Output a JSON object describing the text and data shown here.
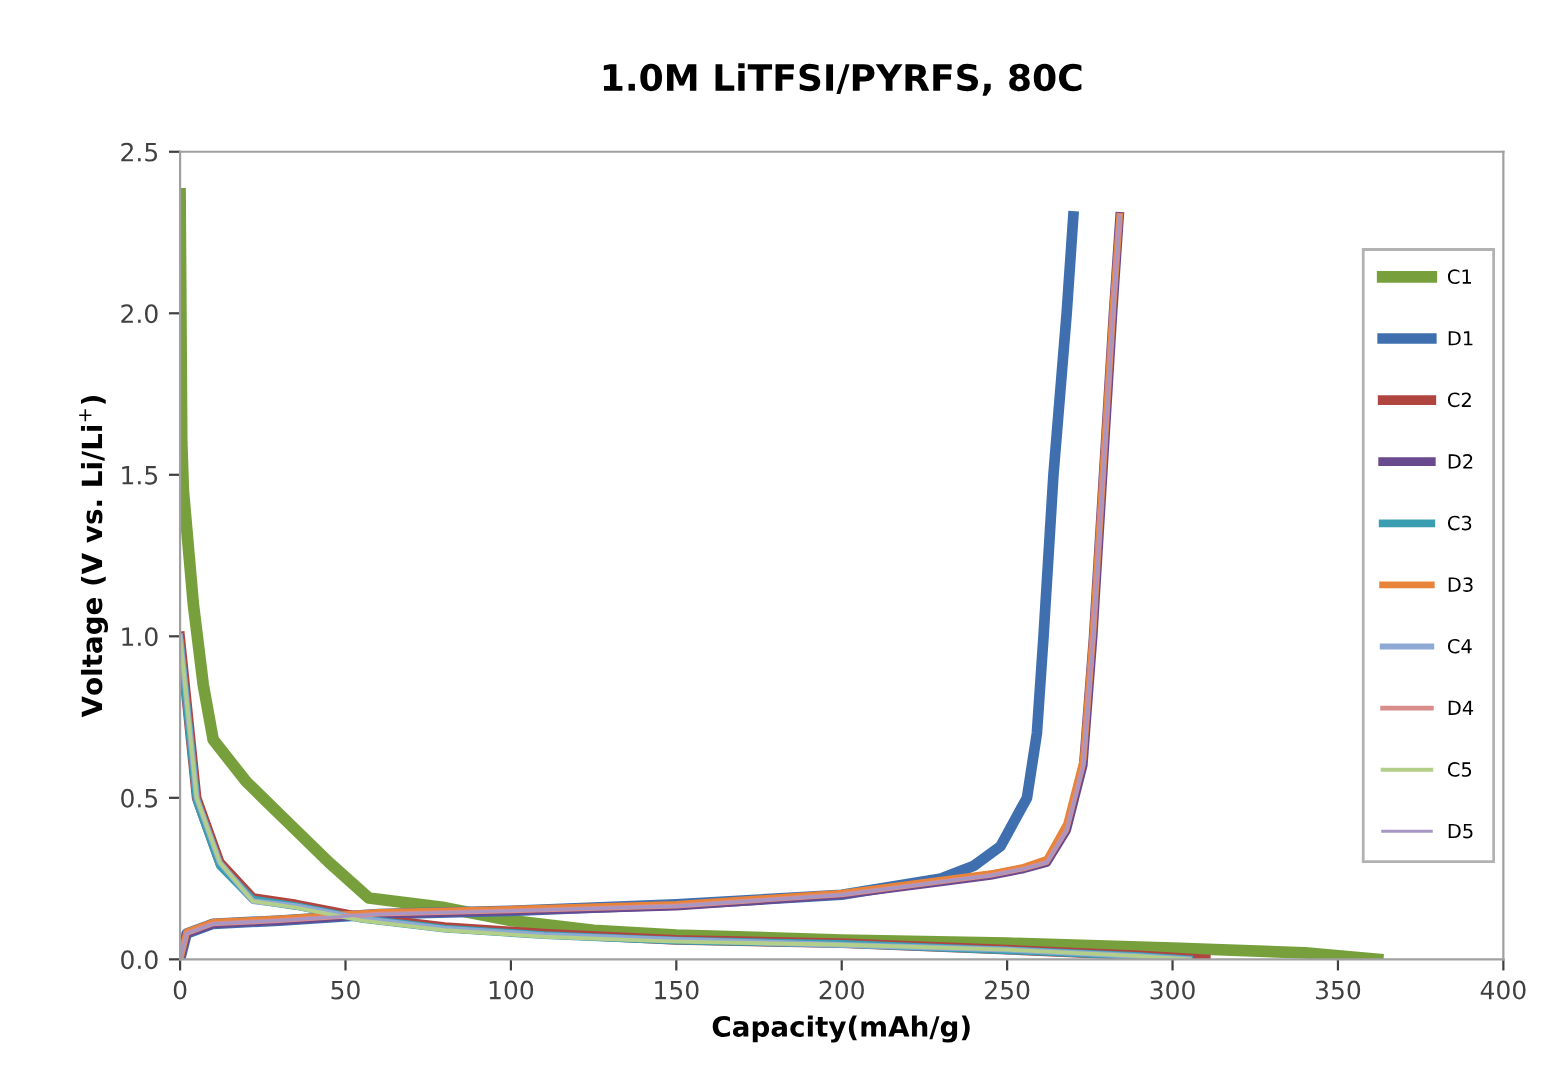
{
  "chart_data": {
    "type": "line",
    "title": "1.0M LiTFSI/PYRFS, 80C",
    "xlabel": "Capacity(mAh/g)",
    "ylabel": "Voltage (V vs. Li/Li$^{+}$)",
    "xlim": [
      0,
      400
    ],
    "ylim": [
      0,
      2.5
    ],
    "xticks": [
      0,
      50,
      100,
      150,
      200,
      250,
      300,
      350,
      400
    ],
    "yticks": [
      {
        "value": 0,
        "label": "0.0"
      },
      {
        "value": 0.5,
        "label": "0.5"
      },
      {
        "value": 1,
        "label": "1.0"
      },
      {
        "value": 1.5,
        "label": "1.5"
      },
      {
        "value": 2,
        "label": "2.0"
      },
      {
        "value": 2.5,
        "label": "2.5"
      }
    ],
    "grid": false,
    "legend": "right",
    "marker": "none",
    "line_style": "solid",
    "series": [
      {
        "name": "C1",
        "color": "#77a03c",
        "x": [
          0,
          0.5,
          1,
          4,
          7,
          10,
          20,
          35,
          45,
          57,
          80,
          100,
          125,
          150,
          200,
          250,
          300,
          340,
          362
        ],
        "values": [
          2.37,
          1.6,
          1.45,
          1.1,
          0.85,
          0.68,
          0.55,
          0.4,
          0.3,
          0.19,
          0.16,
          0.12,
          0.09,
          0.075,
          0.06,
          0.05,
          0.035,
          0.02,
          0
        ]
      },
      {
        "name": "D1",
        "color": "#3f6faf",
        "x": [
          0,
          2,
          10,
          30,
          60,
          100,
          150,
          200,
          230,
          240,
          248,
          256,
          259,
          261,
          264,
          268,
          270
        ],
        "values": [
          0,
          0.08,
          0.11,
          0.12,
          0.14,
          0.15,
          0.17,
          0.2,
          0.25,
          0.29,
          0.35,
          0.5,
          0.7,
          1.0,
          1.5,
          2.0,
          2.3
        ]
      },
      {
        "name": "C2",
        "color": "#b04540",
        "x": [
          0,
          5,
          12,
          22,
          35,
          55,
          80,
          110,
          150,
          200,
          250,
          290,
          310
        ],
        "values": [
          1.0,
          0.5,
          0.3,
          0.19,
          0.17,
          0.13,
          0.1,
          0.08,
          0.06,
          0.05,
          0.03,
          0.012,
          0
        ]
      },
      {
        "name": "D2",
        "color": "#6a4a8f",
        "x": [
          0,
          2,
          10,
          30,
          60,
          100,
          150,
          200,
          230,
          245,
          255,
          262,
          268,
          273,
          276,
          279,
          282,
          284
        ],
        "values": [
          0,
          0.08,
          0.11,
          0.12,
          0.14,
          0.15,
          0.165,
          0.2,
          0.24,
          0.26,
          0.28,
          0.3,
          0.4,
          0.6,
          1.0,
          1.5,
          2.0,
          2.3
        ]
      },
      {
        "name": "C3",
        "color": "#3a9db0",
        "x": [
          0,
          5,
          12,
          22,
          35,
          55,
          80,
          110,
          150,
          200,
          250,
          290,
          305
        ],
        "values": [
          0.98,
          0.49,
          0.29,
          0.185,
          0.165,
          0.125,
          0.095,
          0.075,
          0.058,
          0.048,
          0.028,
          0.01,
          0
        ]
      },
      {
        "name": "D3",
        "color": "#e8843a",
        "x": [
          0,
          2,
          10,
          30,
          60,
          100,
          150,
          200,
          230,
          245,
          255,
          262,
          268,
          273,
          276,
          279,
          282,
          284
        ],
        "values": [
          0,
          0.085,
          0.115,
          0.125,
          0.145,
          0.155,
          0.17,
          0.205,
          0.245,
          0.265,
          0.285,
          0.31,
          0.42,
          0.62,
          1.02,
          1.52,
          2.02,
          2.3
        ]
      },
      {
        "name": "C4",
        "color": "#8ea9d4",
        "x": [
          0,
          5,
          12,
          22,
          35,
          55,
          80,
          110,
          150,
          200,
          250,
          290,
          305
        ],
        "values": [
          1.0,
          0.5,
          0.3,
          0.18,
          0.165,
          0.125,
          0.095,
          0.075,
          0.06,
          0.045,
          0.03,
          0.01,
          0
        ]
      },
      {
        "name": "D4",
        "color": "#d98e8c",
        "x": [
          0,
          2,
          10,
          30,
          60,
          100,
          150,
          200,
          230,
          245,
          255,
          262,
          268,
          273,
          276,
          279,
          282,
          284
        ],
        "values": [
          0,
          0.08,
          0.11,
          0.12,
          0.14,
          0.15,
          0.165,
          0.2,
          0.24,
          0.26,
          0.28,
          0.3,
          0.4,
          0.6,
          1.0,
          1.5,
          2.0,
          2.3
        ]
      },
      {
        "name": "C5",
        "color": "#b3cf8a",
        "x": [
          0,
          5,
          12,
          22,
          35,
          55,
          80,
          110,
          150,
          200,
          250,
          290,
          305
        ],
        "values": [
          1.0,
          0.5,
          0.3,
          0.18,
          0.16,
          0.12,
          0.09,
          0.07,
          0.055,
          0.045,
          0.03,
          0.01,
          0
        ]
      },
      {
        "name": "D5",
        "color": "#a797c4",
        "x": [
          0,
          2,
          10,
          30,
          60,
          100,
          150,
          200,
          230,
          245,
          255,
          262,
          268,
          273,
          276,
          279,
          282,
          284
        ],
        "values": [
          0,
          0.08,
          0.11,
          0.12,
          0.14,
          0.15,
          0.165,
          0.2,
          0.24,
          0.26,
          0.28,
          0.3,
          0.4,
          0.6,
          1.0,
          1.5,
          2.0,
          2.3
        ]
      }
    ]
  }
}
